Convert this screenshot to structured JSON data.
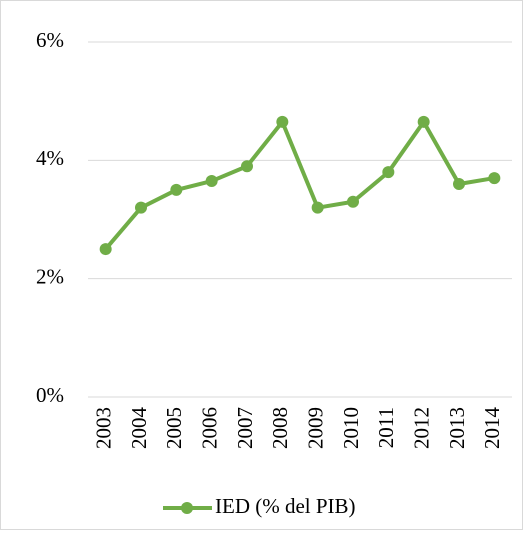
{
  "chart_data": {
    "type": "line",
    "categories": [
      "2003",
      "2004",
      "2005",
      "2006",
      "2007",
      "2008",
      "2009",
      "2010",
      "2011",
      "2012",
      "2013",
      "2014"
    ],
    "series": [
      {
        "name": "IED (% del PIB)",
        "color": "#70ad47",
        "values": [
          2.5,
          3.2,
          3.5,
          3.65,
          3.9,
          4.65,
          3.2,
          3.3,
          3.8,
          4.65,
          3.6,
          3.7
        ]
      }
    ],
    "ylim": [
      0,
      6
    ],
    "yticks": [
      {
        "value": 0,
        "label": "0%"
      },
      {
        "value": 2,
        "label": "2%"
      },
      {
        "value": 4,
        "label": "4%"
      },
      {
        "value": 6,
        "label": "6%"
      }
    ],
    "grid": true,
    "legend": "bottom"
  }
}
